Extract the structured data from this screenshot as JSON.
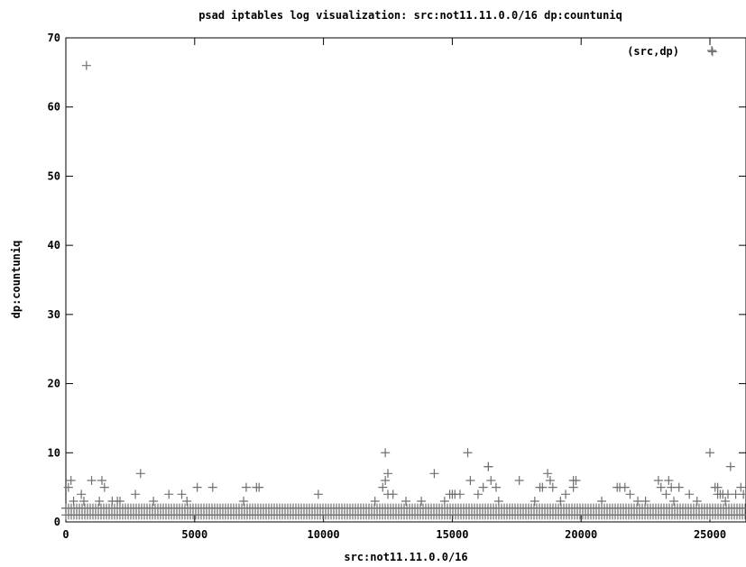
{
  "chart_data": {
    "type": "scatter",
    "title": "psad iptables log visualization: src:not11.11.0.0/16 dp:countuniq",
    "xlabel": "src:not11.11.0.0/16",
    "ylabel": "dp:countuniq",
    "xlim": [
      0,
      26400
    ],
    "ylim": [
      0,
      70
    ],
    "xticks": [
      0,
      5000,
      10000,
      15000,
      20000,
      25000
    ],
    "yticks": [
      0,
      10,
      20,
      30,
      40,
      50,
      60,
      70
    ],
    "grid": false,
    "legend_position": "top-right",
    "series": [
      {
        "name": "(src,dp)",
        "marker": "plus",
        "color": "#707070",
        "baseline_band": {
          "x_start": 0,
          "x_end": 26400,
          "y_values": [
            1,
            2
          ]
        },
        "points": [
          [
            0,
            2
          ],
          [
            100,
            5
          ],
          [
            200,
            6
          ],
          [
            300,
            3
          ],
          [
            600,
            4
          ],
          [
            700,
            3
          ],
          [
            800,
            66
          ],
          [
            1000,
            6
          ],
          [
            1300,
            3
          ],
          [
            1400,
            6
          ],
          [
            1500,
            5
          ],
          [
            1800,
            3
          ],
          [
            2000,
            3
          ],
          [
            2100,
            3
          ],
          [
            2700,
            4
          ],
          [
            2900,
            7
          ],
          [
            3400,
            3
          ],
          [
            4000,
            4
          ],
          [
            4500,
            4
          ],
          [
            4700,
            3
          ],
          [
            5100,
            5
          ],
          [
            5700,
            5
          ],
          [
            6900,
            3
          ],
          [
            7000,
            5
          ],
          [
            7400,
            5
          ],
          [
            7500,
            5
          ],
          [
            9800,
            4
          ],
          [
            12000,
            3
          ],
          [
            12300,
            5
          ],
          [
            12400,
            10
          ],
          [
            12400,
            6
          ],
          [
            12500,
            7
          ],
          [
            12500,
            4
          ],
          [
            12700,
            4
          ],
          [
            13200,
            3
          ],
          [
            13800,
            3
          ],
          [
            14300,
            7
          ],
          [
            14700,
            3
          ],
          [
            14900,
            4
          ],
          [
            15000,
            4
          ],
          [
            15100,
            4
          ],
          [
            15300,
            4
          ],
          [
            15600,
            10
          ],
          [
            15700,
            6
          ],
          [
            16000,
            4
          ],
          [
            16200,
            5
          ],
          [
            16400,
            8
          ],
          [
            16400,
            8
          ],
          [
            16500,
            6
          ],
          [
            16700,
            5
          ],
          [
            16800,
            3
          ],
          [
            17600,
            6
          ],
          [
            18200,
            3
          ],
          [
            18400,
            5
          ],
          [
            18500,
            5
          ],
          [
            18700,
            7
          ],
          [
            18800,
            6
          ],
          [
            18900,
            5
          ],
          [
            19200,
            3
          ],
          [
            19400,
            4
          ],
          [
            19700,
            6
          ],
          [
            19800,
            6
          ],
          [
            19700,
            5
          ],
          [
            20800,
            3
          ],
          [
            21400,
            5
          ],
          [
            21500,
            5
          ],
          [
            21700,
            5
          ],
          [
            21900,
            4
          ],
          [
            22200,
            3
          ],
          [
            22500,
            3
          ],
          [
            23000,
            6
          ],
          [
            23100,
            5
          ],
          [
            23300,
            4
          ],
          [
            23400,
            6
          ],
          [
            23500,
            5
          ],
          [
            23600,
            3
          ],
          [
            23800,
            5
          ],
          [
            24200,
            4
          ],
          [
            24500,
            3
          ],
          [
            25000,
            10
          ],
          [
            25200,
            5
          ],
          [
            25300,
            4
          ],
          [
            25300,
            5
          ],
          [
            25400,
            4
          ],
          [
            25500,
            4
          ],
          [
            25600,
            3
          ],
          [
            25700,
            4
          ],
          [
            25800,
            8
          ],
          [
            26000,
            4
          ],
          [
            26200,
            5
          ],
          [
            26300,
            4
          ],
          [
            25100,
            68
          ]
        ]
      }
    ]
  }
}
